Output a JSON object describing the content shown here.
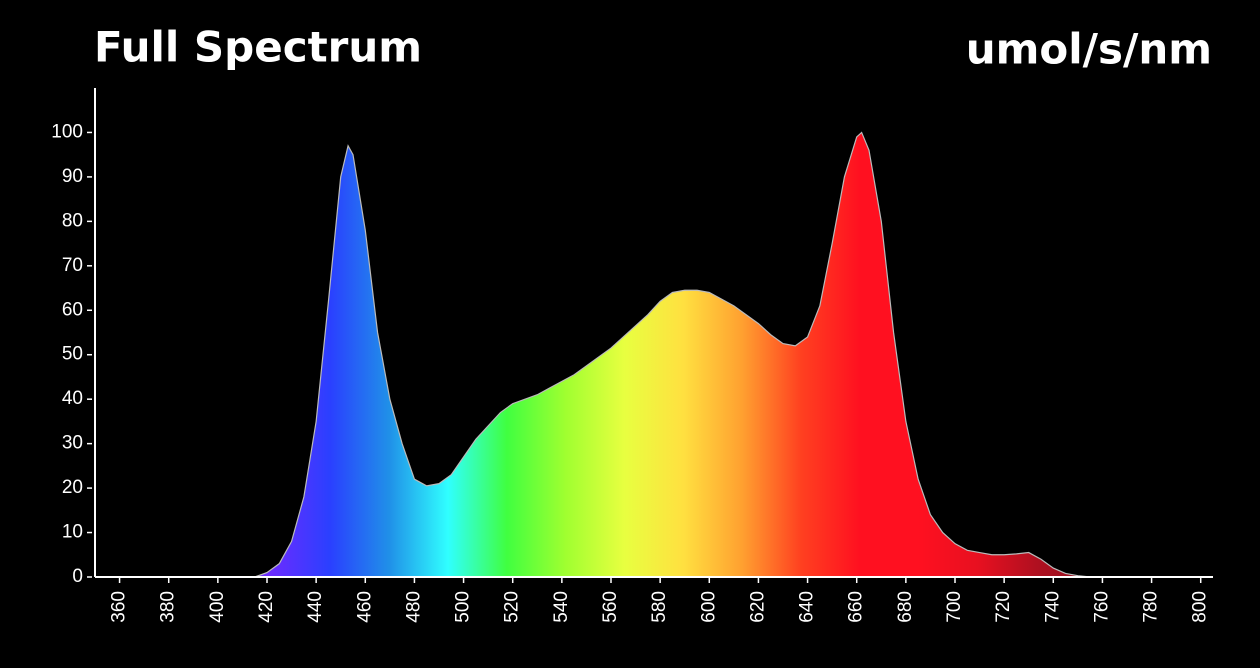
{
  "chart_data": {
    "type": "area",
    "title": "Full Spectrum",
    "unit_label": "umol/s/nm",
    "x": [
      350,
      355,
      360,
      365,
      370,
      375,
      380,
      385,
      390,
      395,
      400,
      405,
      410,
      415,
      420,
      425,
      430,
      435,
      440,
      445,
      450,
      453,
      455,
      460,
      465,
      470,
      475,
      480,
      485,
      490,
      495,
      500,
      505,
      510,
      515,
      520,
      525,
      530,
      535,
      540,
      545,
      550,
      555,
      560,
      565,
      570,
      575,
      580,
      585,
      590,
      595,
      600,
      605,
      610,
      615,
      620,
      625,
      630,
      635,
      640,
      645,
      650,
      655,
      660,
      662,
      665,
      670,
      675,
      680,
      685,
      690,
      695,
      700,
      705,
      710,
      715,
      720,
      725,
      730,
      735,
      740,
      745,
      750,
      755,
      760,
      765,
      770,
      775,
      780,
      785,
      790,
      795,
      800,
      805
    ],
    "values": [
      0,
      0,
      0,
      0,
      0,
      0,
      0,
      0,
      0,
      0,
      0,
      0,
      0,
      0,
      1,
      3,
      8,
      18,
      35,
      62,
      90,
      97,
      95,
      78,
      55,
      40,
      30,
      22,
      20.5,
      21,
      23,
      27,
      31,
      34,
      37,
      39,
      40,
      41,
      42.5,
      44,
      45.5,
      47.5,
      49.5,
      51.5,
      54,
      56.5,
      59,
      62,
      64,
      64.5,
      64.5,
      64,
      62.5,
      61,
      59,
      57,
      54.5,
      52.5,
      52,
      54,
      61,
      75,
      90,
      99,
      100,
      96,
      80,
      55,
      35,
      22,
      14,
      10,
      7.5,
      6,
      5.5,
      5,
      5,
      5.2,
      5.5,
      4,
      2,
      0.8,
      0.3,
      0,
      0,
      0,
      0,
      0,
      0,
      0,
      0,
      0,
      0,
      0
    ],
    "gradient_colors": [
      "#5a20c0",
      "#5a20c0",
      "#6a2cff",
      "#6a2cff",
      "#2a40ff",
      "#2090e8",
      "#30ffff",
      "#40ff40",
      "#a0ff30",
      "#e8ff40",
      "#ffe040",
      "#ffa030",
      "#ff4020",
      "#ff1020",
      "#ff1020",
      "#e81020",
      "#b01020",
      "#901020",
      "#901020",
      "#901020"
    ],
    "xlim": [
      350,
      805
    ],
    "ylim": [
      0,
      110
    ],
    "xticks": [
      360,
      380,
      400,
      420,
      440,
      460,
      480,
      500,
      520,
      540,
      560,
      580,
      600,
      620,
      640,
      660,
      680,
      700,
      720,
      740,
      760,
      780,
      800
    ],
    "yticks": [
      0,
      10,
      20,
      30,
      40,
      50,
      60,
      70,
      80,
      90,
      100
    ]
  }
}
